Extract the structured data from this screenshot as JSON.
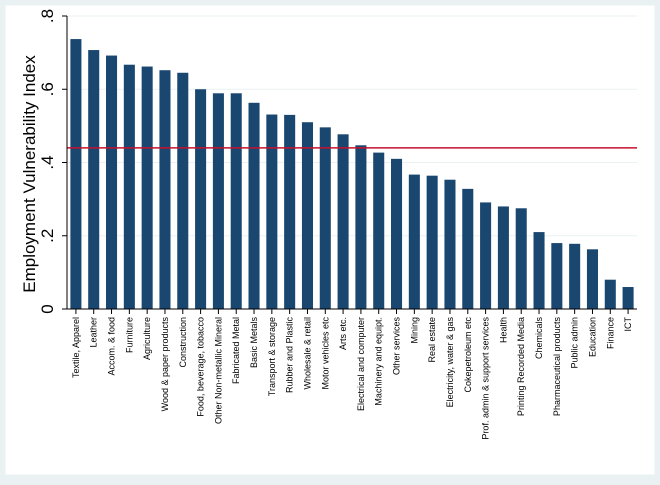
{
  "chart_data": {
    "type": "bar",
    "title": "",
    "xlabel": "",
    "ylabel": "Employment Vulnerability Index",
    "ylim": [
      0,
      0.8
    ],
    "yticks": [
      0,
      0.2,
      0.4,
      0.6,
      0.8
    ],
    "ytick_labels": [
      "0",
      ".2",
      ".4",
      ".6",
      ".8"
    ],
    "grid": true,
    "reference_line": {
      "value": 0.44,
      "color": "#c8102e"
    },
    "bar_color": "#1a476f",
    "categories": [
      "Textile, Apparel",
      "Leather",
      "Accom. & food",
      "Furniture",
      "Agriculture",
      "Wood & paper products",
      "Construction",
      "Food, beverage, tobacco",
      "Other Non-metallic Mineral",
      "Fabricated Metal",
      "Basic Metals",
      "Transport & storage",
      "Rubber and Plastic",
      "Wholesale & retail",
      "Motor vehicles etc",
      "Arts etc.",
      "Electrical and computer",
      "Machinery and equipt.",
      "Other services",
      "Mining",
      "Real estate",
      "Electricity, water & gas",
      "Cokepetroleum etc",
      "Prof. admin & support services",
      "Health",
      "Printing Recorded Media",
      "Chemicals",
      "Pharmaceutical products",
      "Public admin",
      "Education",
      "Finance",
      "ICT"
    ],
    "values": [
      0.737,
      0.707,
      0.692,
      0.667,
      0.662,
      0.652,
      0.645,
      0.6,
      0.589,
      0.589,
      0.563,
      0.531,
      0.53,
      0.51,
      0.496,
      0.477,
      0.447,
      0.427,
      0.41,
      0.367,
      0.364,
      0.353,
      0.328,
      0.291,
      0.28,
      0.275,
      0.21,
      0.18,
      0.178,
      0.163,
      0.08,
      0.06
    ]
  }
}
